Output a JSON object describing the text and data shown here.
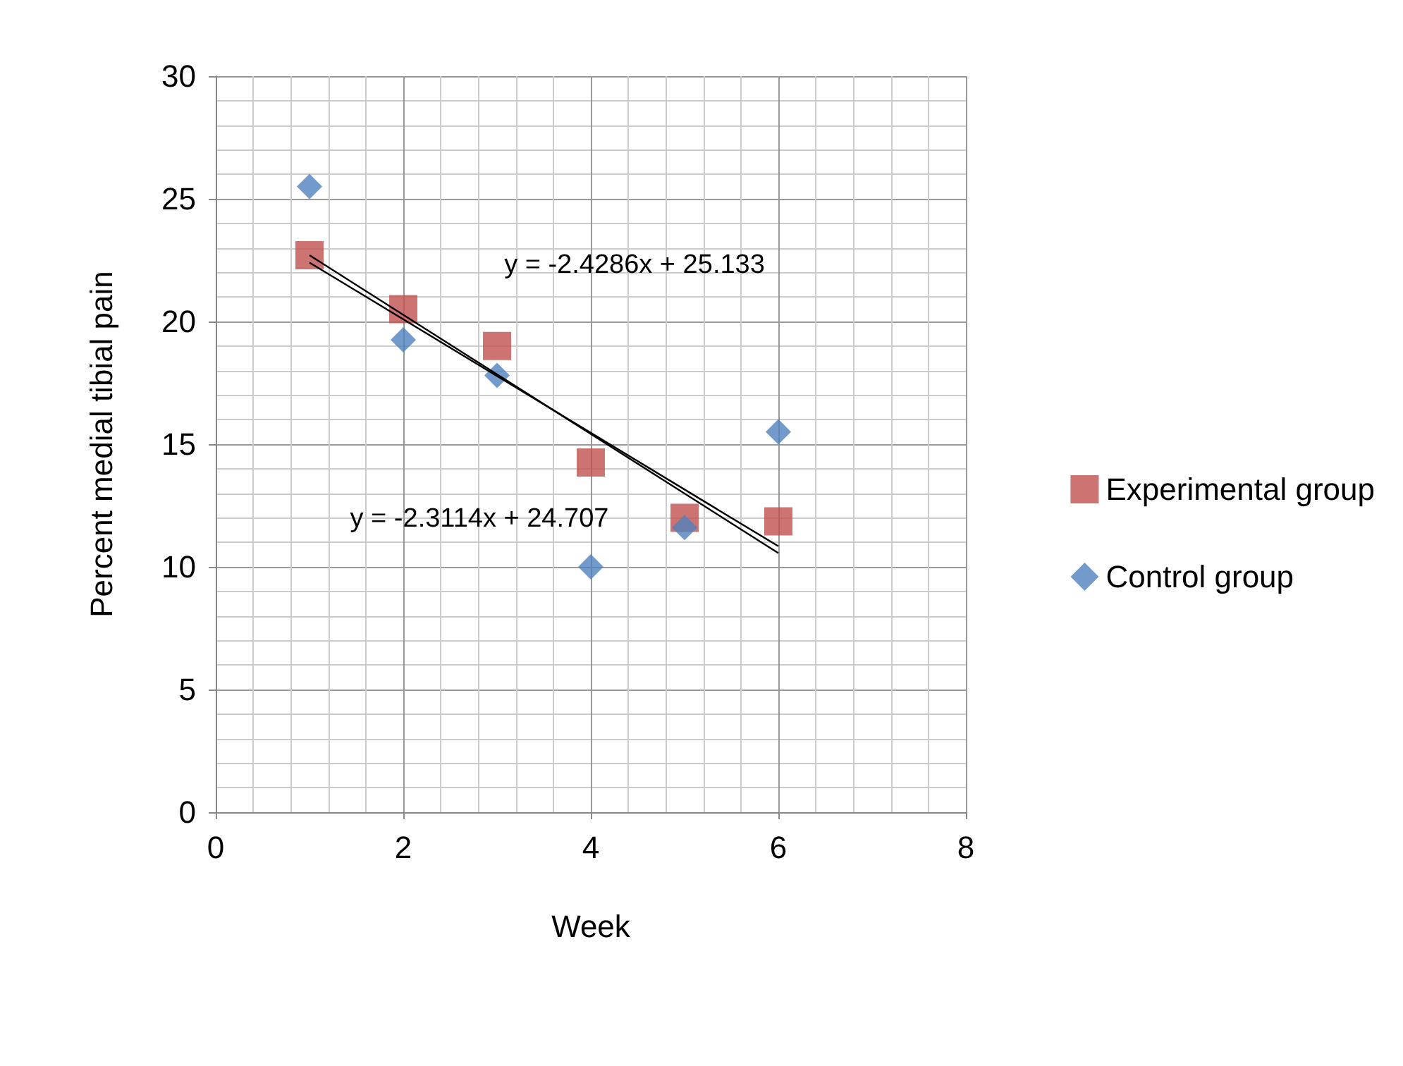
{
  "chart_data": {
    "type": "scatter",
    "xlabel": "Week",
    "ylabel": "Percent medial tibial pain",
    "xlim": [
      0,
      8
    ],
    "xticks": [
      0,
      2,
      4,
      6,
      8
    ],
    "ylim": [
      0,
      30
    ],
    "yticks": [
      0,
      5,
      10,
      15,
      20,
      25,
      30
    ],
    "grid": true,
    "legend": "right",
    "series": [
      {
        "name": "Experimental group",
        "color": "#c0504d",
        "marker": "square",
        "x": [
          1,
          2,
          3,
          4,
          5,
          6
        ],
        "values": [
          22.7,
          20.5,
          19.0,
          14.25,
          12.0,
          11.85
        ]
      },
      {
        "name": "Control group",
        "color": "#4f81bd",
        "marker": "diamond",
        "x": [
          1,
          2,
          3,
          4,
          5,
          6
        ],
        "values": [
          25.5,
          19.25,
          17.8,
          10.0,
          11.6,
          15.5
        ]
      },
      {
        "type": "line",
        "color": "#000000",
        "marker": "none",
        "x": [
          1,
          6
        ],
        "values": [
          22.7,
          10.56
        ]
      },
      {
        "type": "line",
        "color": "#000000",
        "marker": "none",
        "x": [
          1,
          6
        ],
        "values": [
          22.4,
          10.84
        ]
      }
    ],
    "annotations": [
      "y = -2.4286x + 25.133",
      "y = -2.3114x + 24.707"
    ]
  }
}
